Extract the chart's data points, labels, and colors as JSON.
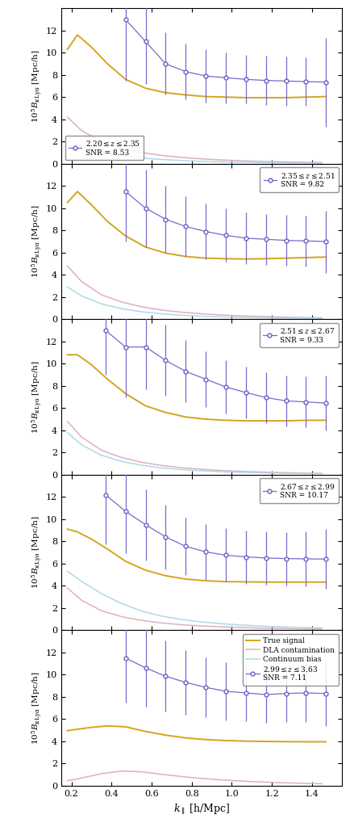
{
  "panels": [
    {
      "z_label": "2.20 \\leq z \\leq 2.35",
      "snr": "8.53",
      "legend_loc": "lower left",
      "true_signal": {
        "x": [
          0.18,
          0.23,
          0.3,
          0.38,
          0.47,
          0.57,
          0.67,
          0.77,
          0.87,
          0.97,
          1.07,
          1.17,
          1.27,
          1.37,
          1.47
        ],
        "y": [
          10.3,
          11.6,
          10.5,
          9.0,
          7.6,
          6.8,
          6.4,
          6.2,
          6.05,
          6.0,
          5.95,
          5.95,
          5.95,
          6.0,
          6.05
        ]
      },
      "dla": {
        "x": [
          0.18,
          0.25,
          0.35,
          0.45,
          0.55,
          0.65,
          0.75,
          0.85,
          0.95,
          1.05,
          1.15,
          1.25,
          1.35,
          1.45
        ],
        "y": [
          4.2,
          3.0,
          2.0,
          1.4,
          1.0,
          0.75,
          0.57,
          0.44,
          0.34,
          0.27,
          0.21,
          0.17,
          0.14,
          0.11
        ]
      },
      "continuum": {
        "x": [
          0.18,
          0.25,
          0.35,
          0.45,
          0.55,
          0.65,
          0.75,
          0.85,
          0.95,
          1.05,
          1.15,
          1.25,
          1.35,
          1.45
        ],
        "y": [
          2.1,
          1.55,
          1.05,
          0.72,
          0.52,
          0.38,
          0.29,
          0.22,
          0.17,
          0.13,
          0.1,
          0.08,
          0.065,
          0.052
        ]
      },
      "data_x": [
        0.47,
        0.57,
        0.67,
        0.77,
        0.87,
        0.97,
        1.07,
        1.17,
        1.27,
        1.37,
        1.47
      ],
      "data_y": [
        13.0,
        11.0,
        9.0,
        8.3,
        7.9,
        7.75,
        7.6,
        7.5,
        7.45,
        7.4,
        7.35
      ],
      "data_yerr_lo": [
        5.5,
        3.8,
        2.8,
        2.5,
        2.4,
        2.3,
        2.2,
        2.2,
        2.2,
        2.2,
        4.0
      ],
      "data_yerr_hi": [
        5.5,
        3.8,
        2.8,
        2.5,
        2.4,
        2.3,
        2.2,
        2.2,
        2.2,
        2.2,
        4.0
      ]
    },
    {
      "z_label": "2.35 \\leq z \\leq 2.51",
      "snr": "9.82",
      "legend_loc": "upper right",
      "true_signal": {
        "x": [
          0.18,
          0.23,
          0.3,
          0.38,
          0.47,
          0.57,
          0.67,
          0.77,
          0.87,
          0.97,
          1.07,
          1.17,
          1.27,
          1.37,
          1.47
        ],
        "y": [
          10.5,
          11.5,
          10.3,
          8.8,
          7.5,
          6.5,
          5.95,
          5.65,
          5.5,
          5.45,
          5.42,
          5.45,
          5.5,
          5.55,
          5.6
        ]
      },
      "dla": {
        "x": [
          0.18,
          0.25,
          0.35,
          0.45,
          0.55,
          0.65,
          0.75,
          0.85,
          0.95,
          1.05,
          1.15,
          1.25,
          1.35,
          1.45
        ],
        "y": [
          4.8,
          3.4,
          2.2,
          1.55,
          1.12,
          0.83,
          0.63,
          0.49,
          0.38,
          0.3,
          0.24,
          0.19,
          0.15,
          0.12
        ]
      },
      "continuum": {
        "x": [
          0.18,
          0.25,
          0.35,
          0.45,
          0.55,
          0.65,
          0.75,
          0.85,
          0.95,
          1.05,
          1.15,
          1.25,
          1.35,
          1.45
        ],
        "y": [
          2.9,
          2.1,
          1.38,
          0.95,
          0.67,
          0.49,
          0.36,
          0.27,
          0.21,
          0.16,
          0.13,
          0.1,
          0.08,
          0.065
        ]
      },
      "data_x": [
        0.47,
        0.57,
        0.67,
        0.77,
        0.87,
        0.97,
        1.07,
        1.17,
        1.27,
        1.37,
        1.47
      ],
      "data_y": [
        11.5,
        10.0,
        9.0,
        8.35,
        7.9,
        7.55,
        7.3,
        7.2,
        7.1,
        7.05,
        7.0
      ],
      "data_yerr_lo": [
        4.5,
        3.5,
        3.0,
        2.7,
        2.5,
        2.4,
        2.3,
        2.3,
        2.3,
        2.3,
        2.8
      ],
      "data_yerr_hi": [
        4.5,
        3.5,
        3.0,
        2.7,
        2.5,
        2.4,
        2.3,
        2.3,
        2.3,
        2.3,
        2.8
      ]
    },
    {
      "z_label": "2.51 \\leq z \\leq 2.67",
      "snr": "9.33",
      "legend_loc": "upper right",
      "true_signal": {
        "x": [
          0.18,
          0.23,
          0.3,
          0.38,
          0.47,
          0.57,
          0.67,
          0.77,
          0.87,
          0.97,
          1.07,
          1.17,
          1.27,
          1.37,
          1.47
        ],
        "y": [
          10.8,
          10.8,
          9.9,
          8.6,
          7.3,
          6.2,
          5.6,
          5.2,
          5.0,
          4.9,
          4.85,
          4.85,
          4.85,
          4.9,
          4.9
        ]
      },
      "dla": {
        "x": [
          0.18,
          0.25,
          0.35,
          0.45,
          0.55,
          0.65,
          0.75,
          0.85,
          0.95,
          1.05,
          1.15,
          1.25,
          1.35,
          1.45
        ],
        "y": [
          4.8,
          3.4,
          2.2,
          1.55,
          1.12,
          0.83,
          0.63,
          0.49,
          0.38,
          0.3,
          0.24,
          0.19,
          0.15,
          0.12
        ]
      },
      "continuum": {
        "x": [
          0.18,
          0.25,
          0.35,
          0.45,
          0.55,
          0.65,
          0.75,
          0.85,
          0.95,
          1.05,
          1.15,
          1.25,
          1.35,
          1.45
        ],
        "y": [
          3.8,
          2.7,
          1.75,
          1.2,
          0.85,
          0.61,
          0.46,
          0.35,
          0.27,
          0.21,
          0.17,
          0.13,
          0.11,
          0.09
        ]
      },
      "data_x": [
        0.37,
        0.47,
        0.57,
        0.67,
        0.77,
        0.87,
        0.97,
        1.07,
        1.17,
        1.27,
        1.37,
        1.47
      ],
      "data_y": [
        13.0,
        11.5,
        11.5,
        10.3,
        9.3,
        8.6,
        7.9,
        7.4,
        6.95,
        6.65,
        6.55,
        6.45
      ],
      "data_yerr_lo": [
        4.0,
        4.5,
        3.8,
        3.2,
        2.8,
        2.5,
        2.4,
        2.35,
        2.3,
        2.3,
        2.3,
        2.5
      ],
      "data_yerr_hi": [
        4.0,
        4.5,
        3.8,
        3.2,
        2.8,
        2.5,
        2.4,
        2.35,
        2.3,
        2.3,
        2.3,
        2.5
      ]
    },
    {
      "z_label": "2.67 \\leq z \\leq 2.99",
      "snr": "10.17",
      "legend_loc": "upper right",
      "true_signal": {
        "x": [
          0.18,
          0.23,
          0.3,
          0.38,
          0.47,
          0.57,
          0.67,
          0.77,
          0.87,
          0.97,
          1.07,
          1.17,
          1.27,
          1.37,
          1.47
        ],
        "y": [
          9.1,
          8.85,
          8.2,
          7.3,
          6.2,
          5.4,
          4.9,
          4.6,
          4.45,
          4.37,
          4.35,
          4.33,
          4.33,
          4.33,
          4.33
        ]
      },
      "dla": {
        "x": [
          0.18,
          0.25,
          0.35,
          0.45,
          0.55,
          0.65,
          0.75,
          0.85,
          0.95,
          1.05,
          1.15,
          1.25,
          1.35,
          1.45
        ],
        "y": [
          3.8,
          2.7,
          1.75,
          1.22,
          0.88,
          0.65,
          0.49,
          0.38,
          0.3,
          0.24,
          0.19,
          0.15,
          0.12,
          0.1
        ]
      },
      "continuum": {
        "x": [
          0.18,
          0.25,
          0.35,
          0.45,
          0.55,
          0.65,
          0.75,
          0.85,
          0.95,
          1.05,
          1.15,
          1.25,
          1.35,
          1.45
        ],
        "y": [
          5.3,
          4.4,
          3.3,
          2.4,
          1.72,
          1.27,
          0.96,
          0.74,
          0.58,
          0.46,
          0.37,
          0.3,
          0.24,
          0.2
        ]
      },
      "data_x": [
        0.37,
        0.47,
        0.57,
        0.67,
        0.77,
        0.87,
        0.97,
        1.07,
        1.17,
        1.27,
        1.37,
        1.47
      ],
      "data_y": [
        12.2,
        10.7,
        9.5,
        8.4,
        7.55,
        7.05,
        6.75,
        6.6,
        6.5,
        6.45,
        6.42,
        6.4
      ],
      "data_yerr_lo": [
        4.5,
        3.8,
        3.2,
        2.9,
        2.6,
        2.5,
        2.4,
        2.4,
        2.4,
        2.4,
        2.5,
        2.7
      ],
      "data_yerr_hi": [
        4.5,
        3.8,
        3.2,
        2.9,
        2.6,
        2.5,
        2.4,
        2.4,
        2.4,
        2.4,
        2.5,
        2.7
      ]
    },
    {
      "z_label": "2.99 \\leq z \\leq 3.63",
      "snr": "7.11",
      "legend_loc": "upper right",
      "true_signal": {
        "x": [
          0.18,
          0.23,
          0.3,
          0.38,
          0.47,
          0.57,
          0.67,
          0.77,
          0.87,
          0.97,
          1.07,
          1.17,
          1.27,
          1.37,
          1.47
        ],
        "y": [
          4.95,
          5.08,
          5.25,
          5.38,
          5.3,
          4.88,
          4.55,
          4.3,
          4.15,
          4.06,
          4.01,
          3.98,
          3.96,
          3.95,
          3.95
        ]
      },
      "dla": {
        "x": [
          0.18,
          0.25,
          0.35,
          0.45,
          0.55,
          0.65,
          0.75,
          0.85,
          0.95,
          1.05,
          1.15,
          1.25,
          1.35,
          1.45
        ],
        "y": [
          0.45,
          0.68,
          1.08,
          1.32,
          1.25,
          1.02,
          0.82,
          0.65,
          0.52,
          0.41,
          0.33,
          0.26,
          0.21,
          0.17
        ]
      },
      "continuum": {
        "x": [
          0.18,
          0.25,
          0.35,
          0.45,
          0.55,
          0.65,
          0.75,
          0.85,
          0.95,
          1.05,
          1.15,
          1.25,
          1.35,
          1.45
        ],
        "y": [
          0.0,
          0.0,
          0.0,
          0.0,
          0.0,
          0.0,
          0.0,
          0.0,
          0.0,
          0.0,
          0.0,
          0.0,
          0.0,
          0.0
        ]
      },
      "data_x": [
        0.47,
        0.57,
        0.67,
        0.77,
        0.87,
        0.97,
        1.07,
        1.17,
        1.27,
        1.37,
        1.47
      ],
      "data_y": [
        11.5,
        10.6,
        9.85,
        9.3,
        8.85,
        8.5,
        8.35,
        8.2,
        8.3,
        8.35,
        8.3
      ],
      "data_yerr_lo": [
        4.0,
        3.5,
        3.2,
        2.9,
        2.7,
        2.6,
        2.55,
        2.55,
        2.55,
        2.6,
        2.9
      ],
      "data_yerr_hi": [
        4.0,
        3.5,
        3.2,
        2.9,
        2.7,
        2.6,
        2.55,
        2.55,
        2.55,
        2.6,
        2.9
      ]
    }
  ],
  "true_signal_color": "#D4A520",
  "dla_color": "#DDB0C0",
  "continuum_color": "#B0D8E8",
  "data_color": "#7B68C8",
  "xlim": [
    0.15,
    1.55
  ],
  "ylim": [
    0,
    14
  ],
  "xlabel": "$k_{\\parallel}$ [h/Mpc]",
  "ylabel_template": "$10^5 B_{\\kappa\\mathrm{Ly}\\alpha}$ [Mpc/h]",
  "xticks": [
    0.2,
    0.4,
    0.6,
    0.8,
    1.0,
    1.2,
    1.4
  ],
  "yticks": [
    0,
    2,
    4,
    6,
    8,
    10,
    12
  ],
  "legend_true": "True signal",
  "legend_dla": "DLA contamination",
  "legend_cont": "Continuum bias"
}
